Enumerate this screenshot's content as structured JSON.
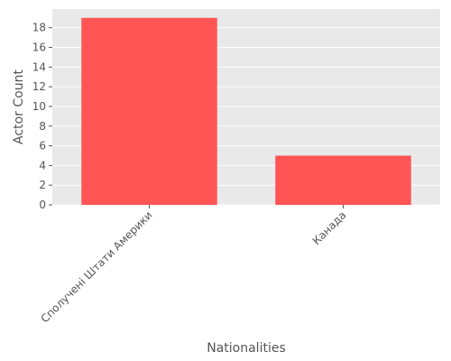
{
  "chart_data": {
    "type": "bar",
    "categories": [
      "Сполучені Штати Америки",
      "Канада"
    ],
    "values": [
      19,
      5
    ],
    "xlabel": "Nationalities",
    "ylabel": "Actor Count",
    "ylim": [
      0,
      19.9
    ],
    "yticks": [
      0,
      2,
      4,
      6,
      8,
      10,
      12,
      14,
      16,
      18
    ],
    "grid": true,
    "legend": "none",
    "bar_color": "#ff5555",
    "plot_background": "#e9e9e9",
    "grid_color": "#ffffff"
  }
}
